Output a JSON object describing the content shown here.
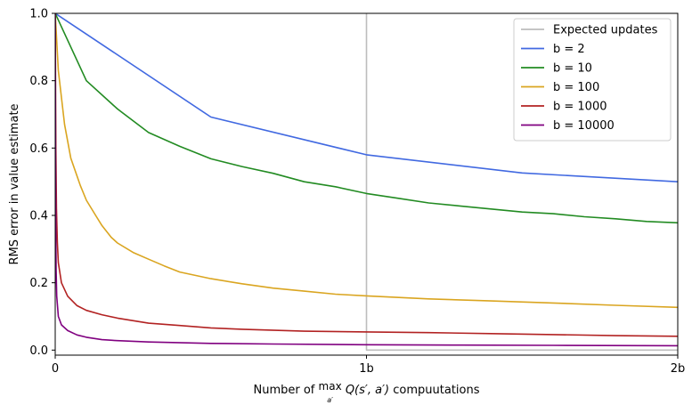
{
  "chart_data": {
    "type": "line",
    "title": "",
    "ylabel": "RMS error in value estimate",
    "xlabel": {
      "prefix": "Number of ",
      "max_op": "max",
      "max_sub": "a′",
      "func": "Q(s′, a′)",
      "suffix": " compuutations"
    },
    "xlim": [
      0,
      2
    ],
    "ylim": [
      -0.015,
      1.0
    ],
    "x_unit": "billion computations",
    "xticks": [
      {
        "value": 0,
        "label": "0"
      },
      {
        "value": 1,
        "label": "1b"
      },
      {
        "value": 2,
        "label": "2b"
      }
    ],
    "yticks": [
      {
        "value": 0.0,
        "label": "0.0"
      },
      {
        "value": 0.2,
        "label": "0.2"
      },
      {
        "value": 0.4,
        "label": "0.4"
      },
      {
        "value": 0.6,
        "label": "0.6"
      },
      {
        "value": 0.8,
        "label": "0.8"
      },
      {
        "value": 1.0,
        "label": "1.0"
      }
    ],
    "grid": false,
    "legend_position": "top-right",
    "series": [
      {
        "name": "Expected updates",
        "color": "#bdbdbd",
        "points": [
          [
            1.0,
            1.0
          ],
          [
            1.0,
            0.0
          ],
          [
            2.0,
            0.0
          ]
        ]
      },
      {
        "name": "b = 2",
        "color": "#4169e1",
        "points": [
          [
            0.0,
            1.0
          ],
          [
            0.5,
            0.692
          ],
          [
            1.0,
            0.58
          ],
          [
            1.5,
            0.526
          ],
          [
            2.0,
            0.5
          ]
        ]
      },
      {
        "name": "b = 10",
        "color": "#228b22",
        "points": [
          [
            0.0,
            1.0
          ],
          [
            0.1,
            0.8
          ],
          [
            0.2,
            0.716
          ],
          [
            0.3,
            0.646
          ],
          [
            0.4,
            0.605
          ],
          [
            0.5,
            0.568
          ],
          [
            0.6,
            0.545
          ],
          [
            0.7,
            0.525
          ],
          [
            0.8,
            0.5
          ],
          [
            0.9,
            0.485
          ],
          [
            1.0,
            0.465
          ],
          [
            1.1,
            0.451
          ],
          [
            1.2,
            0.437
          ],
          [
            1.3,
            0.428
          ],
          [
            1.4,
            0.419
          ],
          [
            1.5,
            0.41
          ],
          [
            1.6,
            0.405
          ],
          [
            1.7,
            0.396
          ],
          [
            1.8,
            0.39
          ],
          [
            1.9,
            0.382
          ],
          [
            2.0,
            0.378
          ]
        ]
      },
      {
        "name": "b = 100",
        "color": "#daa520",
        "points": [
          [
            0.0,
            1.0
          ],
          [
            0.01,
            0.83
          ],
          [
            0.03,
            0.67
          ],
          [
            0.05,
            0.57
          ],
          [
            0.08,
            0.49
          ],
          [
            0.1,
            0.445
          ],
          [
            0.13,
            0.4
          ],
          [
            0.15,
            0.37
          ],
          [
            0.18,
            0.335
          ],
          [
            0.2,
            0.318
          ],
          [
            0.25,
            0.29
          ],
          [
            0.3,
            0.27
          ],
          [
            0.35,
            0.25
          ],
          [
            0.4,
            0.232
          ],
          [
            0.5,
            0.212
          ],
          [
            0.6,
            0.197
          ],
          [
            0.7,
            0.184
          ],
          [
            0.8,
            0.175
          ],
          [
            0.9,
            0.166
          ],
          [
            1.0,
            0.161
          ],
          [
            1.2,
            0.152
          ],
          [
            1.4,
            0.146
          ],
          [
            1.6,
            0.14
          ],
          [
            1.8,
            0.133
          ],
          [
            2.0,
            0.127
          ]
        ]
      },
      {
        "name": "b = 1000",
        "color": "#b22222",
        "points": [
          [
            0.0,
            1.0
          ],
          [
            0.002,
            0.6
          ],
          [
            0.004,
            0.42
          ],
          [
            0.007,
            0.32
          ],
          [
            0.01,
            0.26
          ],
          [
            0.02,
            0.2
          ],
          [
            0.04,
            0.16
          ],
          [
            0.07,
            0.132
          ],
          [
            0.1,
            0.118
          ],
          [
            0.15,
            0.105
          ],
          [
            0.2,
            0.095
          ],
          [
            0.3,
            0.08
          ],
          [
            0.4,
            0.073
          ],
          [
            0.5,
            0.066
          ],
          [
            0.6,
            0.062
          ],
          [
            0.8,
            0.056
          ],
          [
            1.0,
            0.054
          ],
          [
            1.2,
            0.052
          ],
          [
            1.4,
            0.049
          ],
          [
            1.6,
            0.046
          ],
          [
            1.8,
            0.043
          ],
          [
            2.0,
            0.041
          ]
        ]
      },
      {
        "name": "b = 10000",
        "color": "#800080",
        "points": [
          [
            0.0,
            1.0
          ],
          [
            0.001,
            0.6
          ],
          [
            0.002,
            0.35
          ],
          [
            0.003,
            0.24
          ],
          [
            0.005,
            0.16
          ],
          [
            0.01,
            0.1
          ],
          [
            0.02,
            0.075
          ],
          [
            0.04,
            0.058
          ],
          [
            0.07,
            0.045
          ],
          [
            0.1,
            0.038
          ],
          [
            0.15,
            0.031
          ],
          [
            0.2,
            0.028
          ],
          [
            0.3,
            0.024
          ],
          [
            0.5,
            0.02
          ],
          [
            0.7,
            0.018
          ],
          [
            1.0,
            0.016
          ],
          [
            1.3,
            0.015
          ],
          [
            1.6,
            0.014
          ],
          [
            2.0,
            0.013
          ]
        ]
      }
    ]
  }
}
